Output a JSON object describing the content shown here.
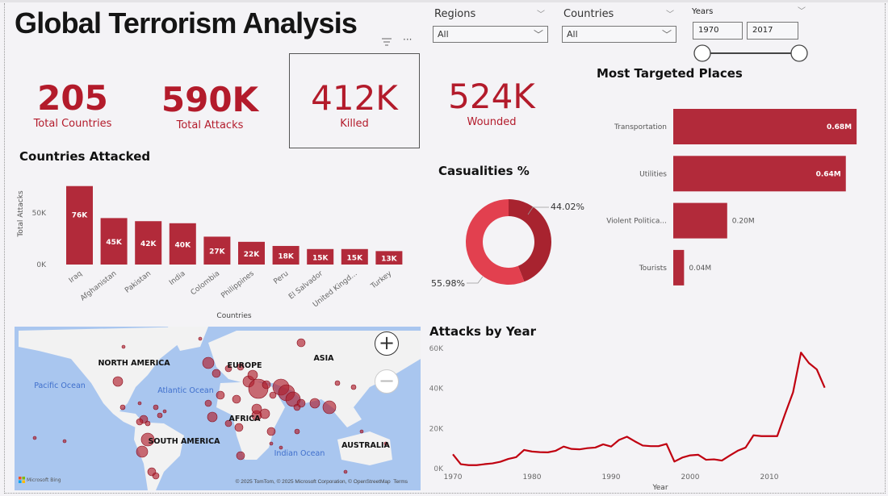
{
  "header": {
    "title": "Global Terrorism Analysis"
  },
  "visual_header": {
    "filter_icon": "filter-icon",
    "more_icon": "more-options-icon"
  },
  "kpis": [
    {
      "value": "205",
      "label": "Total Countries"
    },
    {
      "value": "590K",
      "label": "Total Attacks"
    },
    {
      "value": "412K",
      "label": "Killed"
    },
    {
      "value": "524K",
      "label": "Wounded"
    }
  ],
  "slicers": {
    "regions": {
      "label": "Regions",
      "value": "All"
    },
    "countries": {
      "label": "Countries",
      "value": "All"
    },
    "years": {
      "label": "Years",
      "from": "1970",
      "to": "2017",
      "range": [
        1970,
        2017
      ]
    }
  },
  "colors": {
    "accent": "#b31b2b",
    "bar": "#b22a3a",
    "donut_dark": "#a8232f",
    "donut_light": "#e2404f",
    "line": "#c00010",
    "map_water": "#a9c6ef",
    "map_land": "#f2f2f2"
  },
  "chart_data": [
    {
      "type": "bar",
      "title": "Countries Attacked",
      "xlabel": "Countries",
      "ylabel": "Total Attacks",
      "categories": [
        "Iraq",
        "Afghanistan",
        "Pakistan",
        "India",
        "Colombia",
        "Philippines",
        "Peru",
        "El Salvador",
        "United Kingd...",
        "Turkey"
      ],
      "values": [
        76000,
        45000,
        42000,
        40000,
        27000,
        22000,
        18000,
        15000,
        15000,
        13000
      ],
      "data_labels": [
        "76K",
        "45K",
        "42K",
        "40K",
        "27K",
        "22K",
        "18K",
        "15K",
        "15K",
        "13K"
      ],
      "yticks": [
        "0K",
        "50K"
      ],
      "grid": false
    },
    {
      "type": "bar",
      "orientation": "horizontal",
      "title": "Most Targeted Places",
      "categories": [
        "Transportation",
        "Utilities",
        "Violent Politica...",
        "Tourists"
      ],
      "values": [
        0.68,
        0.64,
        0.2,
        0.04
      ],
      "data_labels": [
        "0.68M",
        "0.64M",
        "0.20M",
        "0.04M"
      ],
      "unit": "M"
    },
    {
      "type": "pie",
      "variant": "donut",
      "title": "Casualities %",
      "values": [
        44.02,
        55.98
      ],
      "data_labels": [
        "44.02%",
        "55.98%"
      ]
    },
    {
      "type": "line",
      "title": "Attacks by Year",
      "xlabel": "Year",
      "xticks": [
        "1970",
        "1980",
        "1990",
        "2000",
        "2010"
      ],
      "yticks": [
        "0K",
        "20K",
        "40K",
        "60K"
      ],
      "ylim": [
        0,
        60000
      ],
      "x": [
        1970,
        1971,
        1972,
        1973,
        1974,
        1975,
        1976,
        1977,
        1978,
        1979,
        1980,
        1981,
        1982,
        1983,
        1984,
        1985,
        1986,
        1987,
        1988,
        1989,
        1990,
        1991,
        1992,
        1993,
        1994,
        1995,
        1996,
        1997,
        1998,
        1999,
        2000,
        2001,
        2002,
        2003,
        2004,
        2005,
        2006,
        2007,
        2008,
        2009,
        2010,
        2011,
        2012,
        2013,
        2014,
        2015,
        2016,
        2017
      ],
      "y": [
        6700,
        1800,
        1300,
        1300,
        1800,
        2200,
        3000,
        4400,
        5300,
        8900,
        8100,
        7800,
        7700,
        8500,
        10600,
        9400,
        9200,
        9800,
        10100,
        11700,
        10600,
        13900,
        15500,
        13200,
        11100,
        10800,
        10800,
        11900,
        3100,
        5100,
        6200,
        6500,
        4000,
        4200,
        3600,
        6100,
        8500,
        10100,
        16200,
        15800,
        15800,
        15800,
        27000,
        37700,
        57500,
        52300,
        49100,
        40000
      ]
    }
  ],
  "map": {
    "labels": [
      "NORTH AMERICA",
      "EUROPE",
      "ASIA",
      "AFRICA",
      "SOUTH AMERICA",
      "AUSTRALIA"
    ],
    "oceans": [
      "Pacific Ocean",
      "Atlantic Ocean",
      "Indian Ocean"
    ],
    "zoom_in": "+",
    "zoom_out": "−",
    "brand": "Microsoft Bing",
    "attribution": "© 2025 TomTom, © 2025 Microsoft Corporation, © OpenStreetMap",
    "terms": "Terms"
  }
}
